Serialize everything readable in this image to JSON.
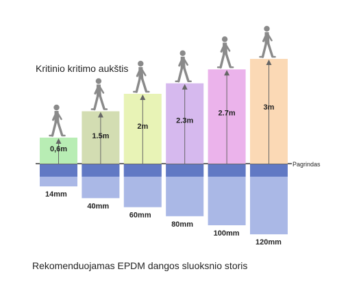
{
  "title": "Kritinio kritimo aukštis",
  "caption": "Rekomenduojamas EPDM dangos sluoksnio storis",
  "base_label": "Pagrindas",
  "icons": [
    "walking-person-icon",
    "up-arrow-icon"
  ],
  "colors": {
    "base_band": "#6179c4",
    "thickness_fill": "#aab8e6",
    "baseline": "#666666",
    "arrow": "#666666",
    "figure": "#8a8a8a"
  },
  "columns": [
    {
      "height_label": "0,6m",
      "height_m": 0.6,
      "thickness_label": "14mm",
      "thickness_mm": 14,
      "color": "#b8edb4"
    },
    {
      "height_label": "1.5m",
      "height_m": 1.5,
      "thickness_label": "40mm",
      "thickness_mm": 40,
      "color": "#d3ddb2"
    },
    {
      "height_label": "2m",
      "height_m": 2,
      "thickness_label": "60mm",
      "thickness_mm": 60,
      "color": "#e8f3b6"
    },
    {
      "height_label": "2.3m",
      "height_m": 2.3,
      "thickness_label": "80mm",
      "thickness_mm": 80,
      "color": "#d6b9ee"
    },
    {
      "height_label": "2.7m",
      "height_m": 2.7,
      "thickness_label": "100mm",
      "thickness_mm": 100,
      "color": "#ebb3eb"
    },
    {
      "height_label": "3m",
      "height_m": 3,
      "thickness_label": "120mm",
      "thickness_mm": 120,
      "color": "#fbd9b5"
    }
  ]
}
